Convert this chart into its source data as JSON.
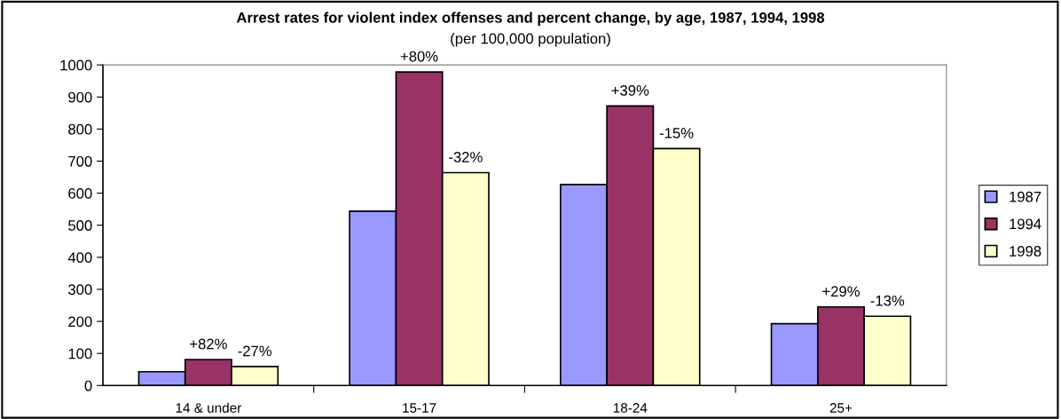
{
  "chart_data": {
    "type": "bar",
    "title": "Arrest rates for violent index offenses and percent change, by age, 1987, 1994, 1998",
    "subtitle": "(per 100,000 population)",
    "categories": [
      "14 & under",
      "15-17",
      "18-24",
      "25+"
    ],
    "series": [
      {
        "name": "1987",
        "color": "#9999ff",
        "values": [
          43,
          544,
          627,
          193
        ]
      },
      {
        "name": "1994",
        "color": "#993366",
        "values": [
          81,
          978,
          872,
          245
        ]
      },
      {
        "name": "1998",
        "color": "#ffffcc",
        "values": [
          59,
          664,
          739,
          216
        ]
      }
    ],
    "annotations": [
      {
        "text": "+82%",
        "x": "14 & under",
        "y": 81
      },
      "-27%",
      {
        "text": "+80%",
        "x": "15-17",
        "y": 978
      },
      "-32%",
      {
        "text": "+39%",
        "x": "18-24",
        "y": 872
      },
      "-15%",
      {
        "text": "+29%",
        "x": "25+",
        "y": 245
      },
      "-13%"
    ],
    "ylim": [
      0,
      1000
    ],
    "yticks": [
      0,
      100,
      200,
      300,
      400,
      500,
      600,
      700,
      800,
      900,
      1000
    ],
    "grid": false,
    "legend": "right"
  }
}
